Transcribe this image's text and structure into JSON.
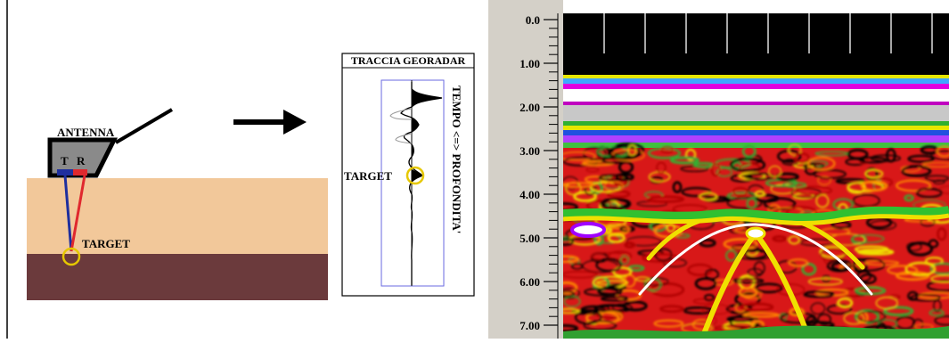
{
  "diagram": {
    "antenna_label": "ANTENNA",
    "antenna_tx": "T",
    "antenna_rx": "R",
    "ground_target_label": "TARGET",
    "trace_title": "TRACCIA GEORADAR",
    "trace_target_label": "TARGET",
    "trace_axis_label": "TEMPO <=> PROFONDITA'"
  },
  "colors": {
    "soil_top": "#f2c89a",
    "soil_bottom": "#6b3a3c",
    "target_circle": "#e6c800",
    "tx_ray": "#1e2f9e",
    "rx_ray": "#e0282e",
    "antenna_body": "#8a8a8a",
    "radargram_bg": "#000000",
    "ruler_bg": "#d4d0c8"
  },
  "radargram": {
    "depth_ticks": [
      "0.0",
      "1.00",
      "2.00",
      "3.00",
      "4.00",
      "5.00",
      "6.00",
      "7.00"
    ]
  }
}
